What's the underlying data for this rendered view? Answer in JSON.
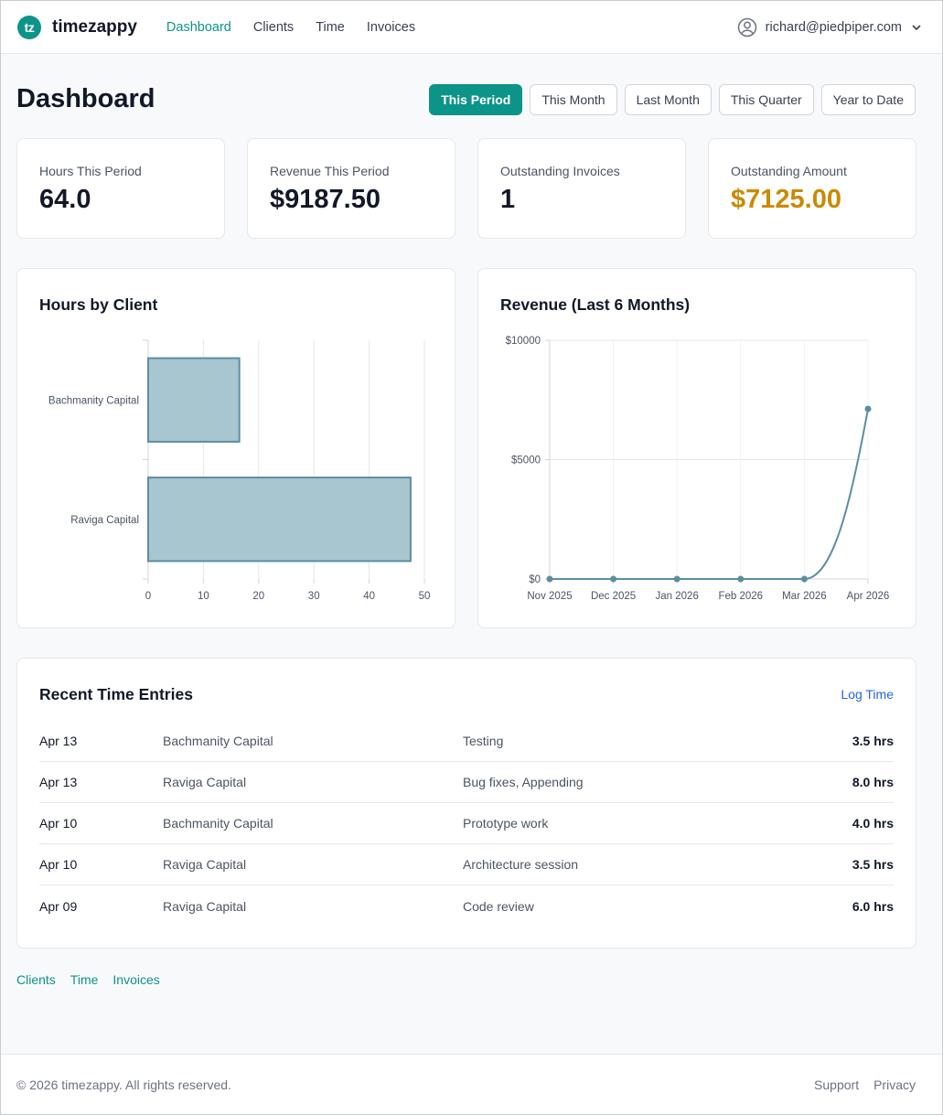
{
  "brand": {
    "badge": "tz",
    "name": "timezappy"
  },
  "nav": [
    {
      "label": "Dashboard",
      "active": true
    },
    {
      "label": "Clients",
      "active": false
    },
    {
      "label": "Time",
      "active": false
    },
    {
      "label": "Invoices",
      "active": false
    }
  ],
  "user": {
    "email": "richard@piedpiper.com",
    "avatar_icon": "user-circle-icon",
    "menu_icon": "chevron-down-icon"
  },
  "page": {
    "title": "Dashboard"
  },
  "periods": [
    {
      "label": "This Period",
      "active": true
    },
    {
      "label": "This Month",
      "active": false
    },
    {
      "label": "Last Month",
      "active": false
    },
    {
      "label": "This Quarter",
      "active": false
    },
    {
      "label": "Year to Date",
      "active": false
    }
  ],
  "stats": [
    {
      "label": "Hours This Period",
      "value": "64.0"
    },
    {
      "label": "Revenue This Period",
      "value": "$9187.50"
    },
    {
      "label": "Outstanding Invoices",
      "value": "1"
    },
    {
      "label": "Outstanding Amount",
      "value": "$7125.00"
    }
  ],
  "colors": {
    "accent": "#0d9488",
    "warning": "#ca8a04",
    "link": "#2563eb",
    "chart_stroke": "#5b8ea4",
    "chart_fill": "#a8c6cf"
  },
  "chart_data": [
    {
      "type": "bar",
      "orientation": "horizontal",
      "title": "Hours by Client",
      "categories": [
        "Bachmanity Capital",
        "Raviga Capital"
      ],
      "values": [
        16.5,
        47.5
      ],
      "xlim": [
        0,
        50
      ],
      "xticks": [
        "0",
        "10",
        "20",
        "30",
        "40",
        "50"
      ],
      "grid": true,
      "legend": "none"
    },
    {
      "type": "line",
      "title": "Revenue (Last 6 Months)",
      "x": [
        "Nov 2025",
        "Dec 2025",
        "Jan 2026",
        "Feb 2026",
        "Mar 2026",
        "Apr 2026"
      ],
      "values": [
        0,
        0,
        0,
        0,
        0,
        7125
      ],
      "ylim": [
        0,
        10000
      ],
      "yticks": [
        "$0",
        "$5000",
        "$10000"
      ],
      "grid": true,
      "legend": "none"
    }
  ],
  "recent": {
    "title": "Recent Time Entries",
    "action_label": "Log Time",
    "rows": [
      {
        "date": "Apr 13",
        "client": "Bachmanity Capital",
        "description": "Testing",
        "hours": "3.5 hrs"
      },
      {
        "date": "Apr 13",
        "client": "Raviga Capital",
        "description": "Bug fixes, Appending",
        "hours": "8.0 hrs"
      },
      {
        "date": "Apr 10",
        "client": "Bachmanity Capital",
        "description": "Prototype work",
        "hours": "4.0 hrs"
      },
      {
        "date": "Apr 10",
        "client": "Raviga Capital",
        "description": "Architecture session",
        "hours": "3.5 hrs"
      },
      {
        "date": "Apr 09",
        "client": "Raviga Capital",
        "description": "Code review",
        "hours": "6.0 hrs"
      }
    ]
  },
  "footer_links": [
    "Clients",
    "Time",
    "Invoices"
  ],
  "footer": {
    "copyright": "© 2026 timezappy. All rights reserved.",
    "links": [
      "Support",
      "Privacy"
    ]
  }
}
